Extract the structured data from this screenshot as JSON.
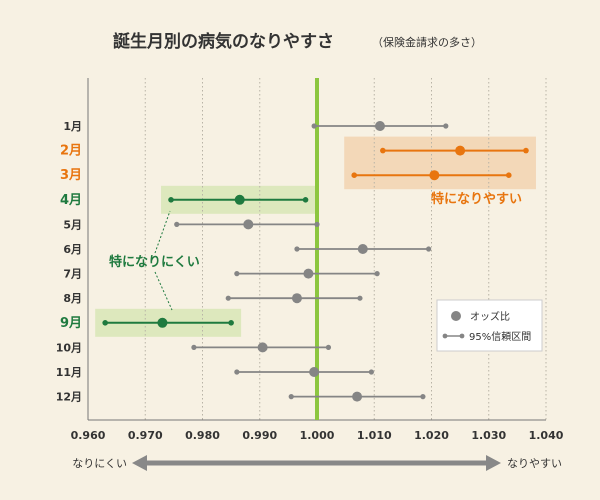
{
  "title": "誕生月別の病気のなりやすさ",
  "subtitle": "（保険金請求の多さ）",
  "colors": {
    "background": "#f7f1e3",
    "neutral": "#858585",
    "high": "#e8750f",
    "high_band": "#f3d8b8",
    "low": "#1f7a3f",
    "low_band": "#dde8bd",
    "reference": "#8cc63f"
  },
  "chart_data": {
    "type": "forest",
    "x_reference": 1.0,
    "xlim": [
      0.96,
      1.04
    ],
    "xticks": [
      "0.960",
      "0.970",
      "0.980",
      "0.990",
      "1.000",
      "1.010",
      "1.020",
      "1.030",
      "1.040"
    ],
    "categories": [
      "1月",
      "2月",
      "3月",
      "4月",
      "5月",
      "6月",
      "7月",
      "8月",
      "9月",
      "10月",
      "11月",
      "12月"
    ],
    "rows": [
      {
        "label": "1月",
        "or": 1.011,
        "lo": 0.9995,
        "hi": 1.0225,
        "group": "neutral"
      },
      {
        "label": "2月",
        "or": 1.025,
        "lo": 1.0115,
        "hi": 1.0365,
        "group": "high"
      },
      {
        "label": "3月",
        "or": 1.0205,
        "lo": 1.0065,
        "hi": 1.0335,
        "group": "high"
      },
      {
        "label": "4月",
        "or": 0.9865,
        "lo": 0.9745,
        "hi": 0.998,
        "group": "low"
      },
      {
        "label": "5月",
        "or": 0.988,
        "lo": 0.9755,
        "hi": 1.0,
        "group": "neutral"
      },
      {
        "label": "6月",
        "or": 1.008,
        "lo": 0.9965,
        "hi": 1.0195,
        "group": "neutral"
      },
      {
        "label": "7月",
        "or": 0.9985,
        "lo": 0.986,
        "hi": 1.0105,
        "group": "neutral"
      },
      {
        "label": "8月",
        "or": 0.9965,
        "lo": 0.9845,
        "hi": 1.0075,
        "group": "neutral"
      },
      {
        "label": "9月",
        "or": 0.973,
        "lo": 0.963,
        "hi": 0.985,
        "group": "low"
      },
      {
        "label": "10月",
        "or": 0.9905,
        "lo": 0.9785,
        "hi": 1.002,
        "group": "neutral"
      },
      {
        "label": "11月",
        "or": 0.9995,
        "lo": 0.986,
        "hi": 1.0095,
        "group": "neutral"
      },
      {
        "label": "12月",
        "or": 1.007,
        "lo": 0.9955,
        "hi": 1.0185,
        "group": "neutral"
      }
    ],
    "annotations": {
      "high": "特になりやすい",
      "low": "特になりにくい"
    },
    "legend": {
      "point_label": "オッズ比",
      "ci_label": "95%信頼区間",
      "position": "bottom-right"
    },
    "direction": {
      "left": "なりにくい",
      "right": "なりやすい"
    },
    "grid": true
  }
}
